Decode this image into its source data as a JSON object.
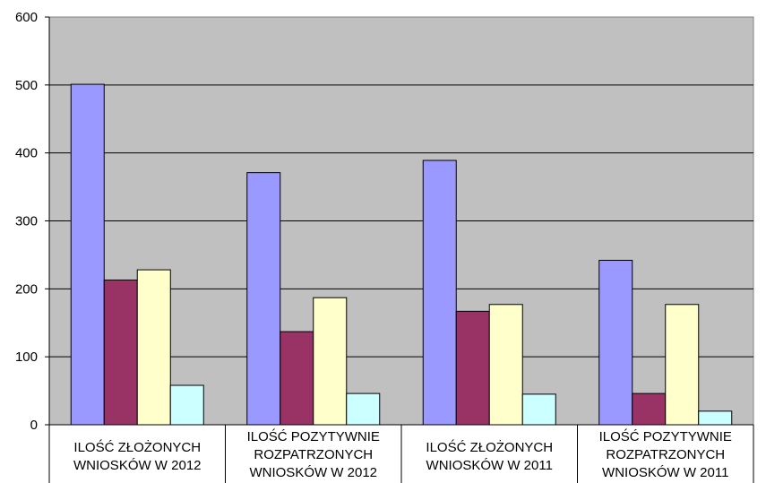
{
  "chart_data": {
    "type": "bar",
    "categories": [
      [
        "ILOŚĆ ZŁOŻONYCH",
        "WNIOSKÓW  W 2012"
      ],
      [
        "ILOŚĆ POZYTYWNIE",
        "ROZPATRZONYCH",
        "WNIOSKÓW W 2012"
      ],
      [
        "ILOŚĆ ZŁOŻONYCH",
        "WNIOSKÓW  W 2011"
      ],
      [
        "ILOŚĆ POZYTYWNIE",
        "ROZPATRZONYCH",
        "WNIOSKÓW W 2011"
      ]
    ],
    "series": [
      {
        "values": [
          501,
          371,
          389,
          242
        ],
        "color": "#9999ff"
      },
      {
        "values": [
          213,
          137,
          167,
          46
        ],
        "color": "#993366"
      },
      {
        "values": [
          228,
          187,
          177,
          177
        ],
        "color": "#ffffcc"
      },
      {
        "values": [
          58,
          46,
          45,
          20
        ],
        "color": "#ccffff"
      }
    ],
    "ylim": [
      0,
      600
    ],
    "yticks": [
      "0",
      "100",
      "200",
      "300",
      "400",
      "500",
      "600"
    ],
    "grid": true,
    "plot_background": "#c0c0c0",
    "title": "",
    "xlabel": "",
    "ylabel": ""
  }
}
